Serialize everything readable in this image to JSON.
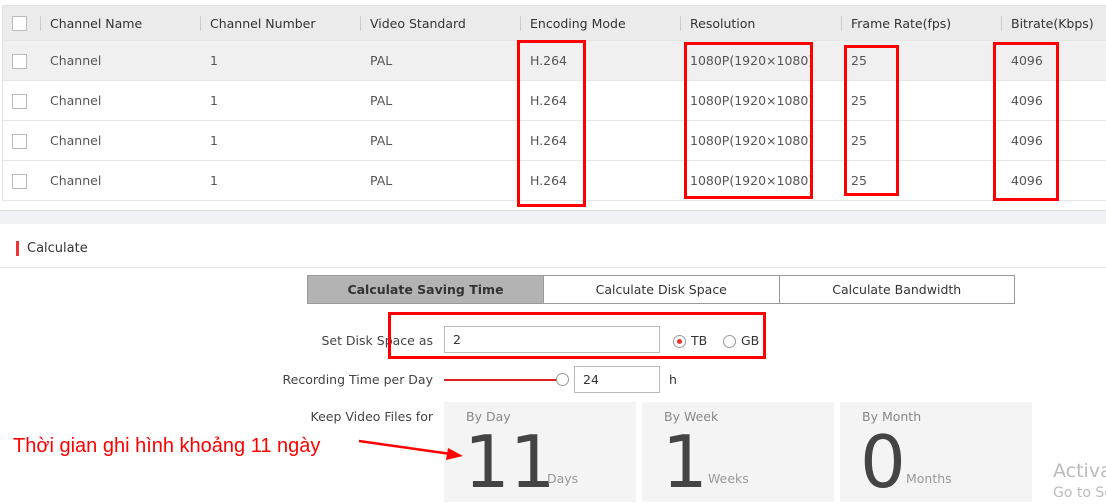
{
  "table": {
    "columns": [
      "Channel Name",
      "Channel Number",
      "Video Standard",
      "Encoding Mode",
      "Resolution",
      "Frame Rate(fps)",
      "Bitrate(Kbps)"
    ],
    "rows": [
      [
        "Channel",
        "1",
        "PAL",
        "H.264",
        "1080P(1920×1080)",
        "25",
        "4096"
      ],
      [
        "Channel",
        "1",
        "PAL",
        "H.264",
        "1080P(1920×1080)",
        "25",
        "4096"
      ],
      [
        "Channel",
        "1",
        "PAL",
        "H.264",
        "1080P(1920×1080)",
        "25",
        "4096"
      ],
      [
        "Channel",
        "1",
        "PAL",
        "H.264",
        "1080P(1920×1080)",
        "25",
        "4096"
      ]
    ]
  },
  "calculate": {
    "title": "Calculate",
    "tabs": [
      "Calculate Saving Time",
      "Calculate Disk Space",
      "Calculate Bandwidth"
    ],
    "active_tab": 0,
    "disk_label": "Set Disk Space as",
    "disk_value": "2",
    "unit_tb": "TB",
    "unit_gb": "GB",
    "unit_selected": "TB",
    "rec_label": "Recording Time per Day",
    "rec_value": "24",
    "rec_unit": "h",
    "rec_fraction": 1.0,
    "keep_label": "Keep Video Files for",
    "cards": [
      {
        "title": "By Day",
        "value": "11",
        "unit": "Days"
      },
      {
        "title": "By Week",
        "value": "1",
        "unit": "Weeks"
      },
      {
        "title": "By Month",
        "value": "0",
        "unit": "Months"
      }
    ]
  },
  "annotation": "Thời gian ghi hình khoảng 11 ngày",
  "watermark": {
    "line1": "Activa",
    "line2": "Go to Se"
  },
  "colors": {
    "accent": "#e33333",
    "highlight": "#ff0000"
  }
}
